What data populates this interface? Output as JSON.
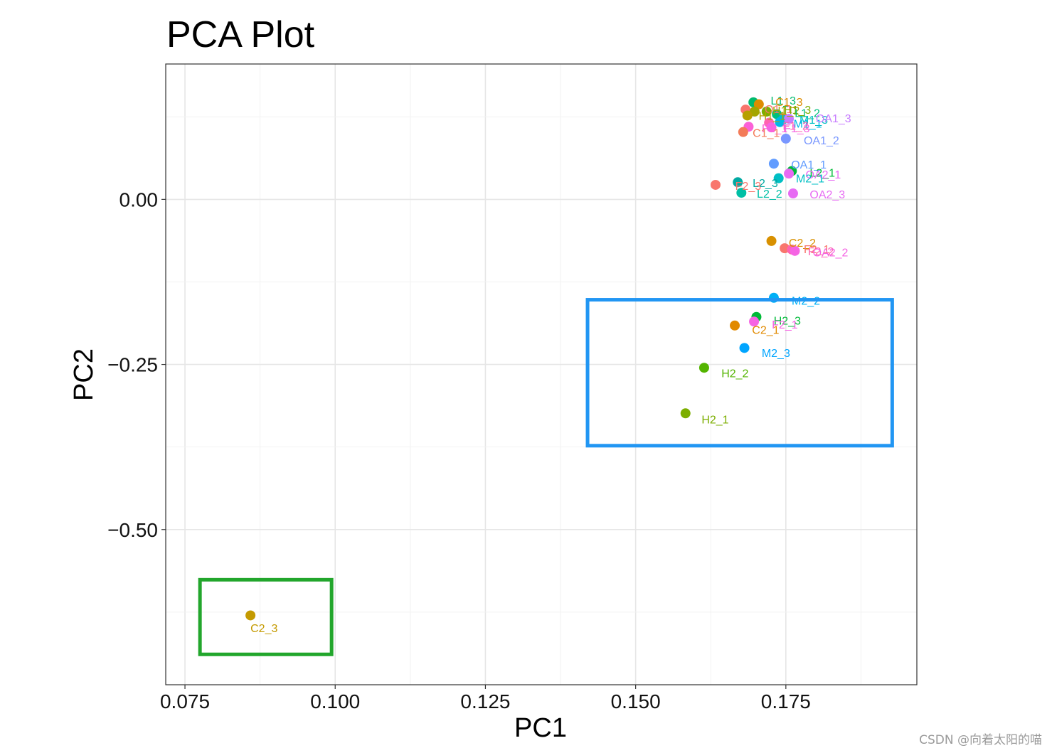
{
  "chart_data": {
    "type": "scatter",
    "title": "PCA Plot",
    "xlabel": "PC1",
    "ylabel": "PC2",
    "xlim": [
      0.0718,
      0.1968
    ],
    "ylim": [
      -0.735,
      0.205
    ],
    "xticks": [
      0.075,
      0.1,
      0.125,
      0.15,
      0.175
    ],
    "xtick_labels": [
      "0.075",
      "0.100",
      "0.125",
      "0.150",
      "0.175"
    ],
    "yticks": [
      0.0,
      -0.25,
      -0.5
    ],
    "ytick_labels": [
      "0.00",
      "−0.25",
      "−0.50"
    ],
    "points": [
      {
        "label": "L1_3",
        "x": 0.1696,
        "y": 0.147,
        "color": "#00BA6E",
        "lx": 0.172,
        "ly": 0.15,
        "dx": 4,
        "dy": 0
      },
      {
        "label": "C1_3",
        "x": 0.1705,
        "y": 0.144,
        "color": "#DE8C00",
        "lx": 0.1728,
        "ly": 0.148,
        "dx": 4,
        "dy": 0
      },
      {
        "label": "O1_1",
        "x": 0.1683,
        "y": 0.136,
        "color": "#F8766D",
        "lx": 0.171,
        "ly": 0.137,
        "dx": 4,
        "dy": 0
      },
      {
        "label": "H1_2",
        "x": 0.1698,
        "y": 0.133,
        "color": "#A3A500",
        "lx": 0.1723,
        "ly": 0.135,
        "dx": 4,
        "dy": 0
      },
      {
        "label": "H1_3",
        "x": 0.1718,
        "y": 0.133,
        "color": "#7CAE00",
        "lx": 0.1742,
        "ly": 0.136,
        "dx": 4,
        "dy": 0
      },
      {
        "label": "L1_2",
        "x": 0.1735,
        "y": 0.129,
        "color": "#00BF7D",
        "lx": 0.176,
        "ly": 0.131,
        "dx": 4,
        "dy": 0
      },
      {
        "label": "H1_1",
        "x": 0.1686,
        "y": 0.127,
        "color": "#B79F00",
        "lx": 0.17,
        "ly": 0.127,
        "dx": 4,
        "dy": 0
      },
      {
        "label": "M1_3",
        "x": 0.1745,
        "y": 0.121,
        "color": "#00BFC4",
        "lx": 0.1768,
        "ly": 0.121,
        "dx": 4,
        "dy": 0
      },
      {
        "label": "M1_1",
        "x": 0.174,
        "y": 0.117,
        "color": "#00B8E7",
        "lx": 0.1758,
        "ly": 0.115,
        "dx": 4,
        "dy": 0
      },
      {
        "label": "OA1_3",
        "x": 0.1755,
        "y": 0.122,
        "color": "#C77CFF",
        "lx": 0.1795,
        "ly": 0.123,
        "dx": 4,
        "dy": 0
      },
      {
        "label": "F1_2",
        "x": 0.1722,
        "y": 0.116,
        "color": "#FF64B0",
        "lx": 0.174,
        "ly": 0.112,
        "dx": 4,
        "dy": 0
      },
      {
        "label": "F1_1",
        "x": 0.1688,
        "y": 0.11,
        "color": "#FB61D7",
        "lx": 0.1705,
        "ly": 0.108,
        "dx": 4,
        "dy": 0
      },
      {
        "label": "C1_1",
        "x": 0.1679,
        "y": 0.102,
        "color": "#F37B59",
        "lx": 0.169,
        "ly": 0.101,
        "dx": 4,
        "dy": 0
      },
      {
        "label": "F1_3",
        "x": 0.1726,
        "y": 0.109,
        "color": "#F564E3",
        "lx": 0.1742,
        "ly": 0.108,
        "dx": 4,
        "dy": 0
      },
      {
        "label": "OA1_2",
        "x": 0.175,
        "y": 0.092,
        "color": "#7997FF",
        "lx": 0.1775,
        "ly": 0.09,
        "dx": 4,
        "dy": 0
      },
      {
        "label": "OA1_1",
        "x": 0.173,
        "y": 0.054,
        "color": "#619CFF",
        "lx": 0.1754,
        "ly": 0.053,
        "dx": 4,
        "dy": 0
      },
      {
        "label": "L2_1",
        "x": 0.176,
        "y": 0.043,
        "color": "#00BA38",
        "lx": 0.1785,
        "ly": 0.041,
        "dx": 4,
        "dy": 0
      },
      {
        "label": "OA2_1",
        "x": 0.1755,
        "y": 0.039,
        "color": "#E76BF3",
        "lx": 0.1778,
        "ly": 0.038,
        "dx": 4,
        "dy": 0
      },
      {
        "label": "M2_1",
        "x": 0.1738,
        "y": 0.032,
        "color": "#00BFC4",
        "lx": 0.1762,
        "ly": 0.032,
        "dx": 4,
        "dy": 0
      },
      {
        "label": "L2_3",
        "x": 0.167,
        "y": 0.026,
        "color": "#00A9A2",
        "lx": 0.169,
        "ly": 0.025,
        "dx": 4,
        "dy": 0
      },
      {
        "label": "F2_3",
        "x": 0.1633,
        "y": 0.022,
        "color": "#F8766D",
        "lx": 0.1661,
        "ly": 0.021,
        "dx": 4,
        "dy": 0
      },
      {
        "label": "L2_2",
        "x": 0.1676,
        "y": 0.01,
        "color": "#00BFA5",
        "lx": 0.1697,
        "ly": 0.009,
        "dx": 4,
        "dy": 0
      },
      {
        "label": "OA2_3",
        "x": 0.1762,
        "y": 0.009,
        "color": "#E76BF3",
        "lx": 0.1785,
        "ly": 0.008,
        "dx": 4,
        "dy": 0
      },
      {
        "label": "C2_2",
        "x": 0.1726,
        "y": -0.063,
        "color": "#D89000",
        "lx": 0.175,
        "ly": -0.065,
        "dx": 4,
        "dy": 0
      },
      {
        "label": "F2_1",
        "x": 0.1748,
        "y": -0.074,
        "color": "#F8766D",
        "lx": 0.1775,
        "ly": -0.075,
        "dx": 4,
        "dy": 0
      },
      {
        "label": "F2_2",
        "x": 0.176,
        "y": -0.076,
        "color": "#FF64B0",
        "lx": 0.1782,
        "ly": -0.078,
        "dx": 4,
        "dy": 0
      },
      {
        "label": "OA2_2",
        "x": 0.1765,
        "y": -0.078,
        "color": "#F564E3",
        "lx": 0.179,
        "ly": -0.08,
        "dx": 4,
        "dy": 0
      },
      {
        "label": "M2_2",
        "x": 0.173,
        "y": -0.149,
        "color": "#00B0F6",
        "lx": 0.1755,
        "ly": -0.153,
        "dx": 4,
        "dy": 0
      },
      {
        "label": "H2_3",
        "x": 0.1701,
        "y": -0.178,
        "color": "#00BA38",
        "lx": 0.1725,
        "ly": -0.183,
        "dx": 4,
        "dy": 0
      },
      {
        "label": "F2_1",
        "x": 0.1697,
        "y": -0.185,
        "color": "#F564E3",
        "lx": 0.1722,
        "ly": -0.189,
        "dx": 4,
        "dy": 0
      },
      {
        "label": "C2_1",
        "x": 0.1665,
        "y": -0.191,
        "color": "#E18A00",
        "lx": 0.1689,
        "ly": -0.197,
        "dx": 4,
        "dy": 0
      },
      {
        "label": "M2_3",
        "x": 0.1681,
        "y": -0.225,
        "color": "#00A5FF",
        "lx": 0.1705,
        "ly": -0.232,
        "dx": 4,
        "dy": 0
      },
      {
        "label": "H2_2",
        "x": 0.1614,
        "y": -0.255,
        "color": "#53B400",
        "lx": 0.1638,
        "ly": -0.263,
        "dx": 4,
        "dy": 0
      },
      {
        "label": "H2_1",
        "x": 0.1583,
        "y": -0.324,
        "color": "#7CAE00",
        "lx": 0.1605,
        "ly": -0.333,
        "dx": 4,
        "dy": 0
      },
      {
        "label": "C2_3",
        "x": 0.0859,
        "y": -0.63,
        "color": "#C49A00",
        "lx": 0.0859,
        "ly": -0.649,
        "dx": 0,
        "dy": 0
      }
    ],
    "annotations": [
      {
        "name": "blue-highlight-box",
        "color": "#2196F3",
        "x0": 0.142,
        "x1": 0.1927,
        "y0": -0.373,
        "y1": -0.152
      },
      {
        "name": "green-highlight-box",
        "color": "#22A62C",
        "x0": 0.0775,
        "x1": 0.0994,
        "y0": -0.689,
        "y1": -0.576
      }
    ]
  },
  "watermark": "CSDN @向着太阳的喵"
}
